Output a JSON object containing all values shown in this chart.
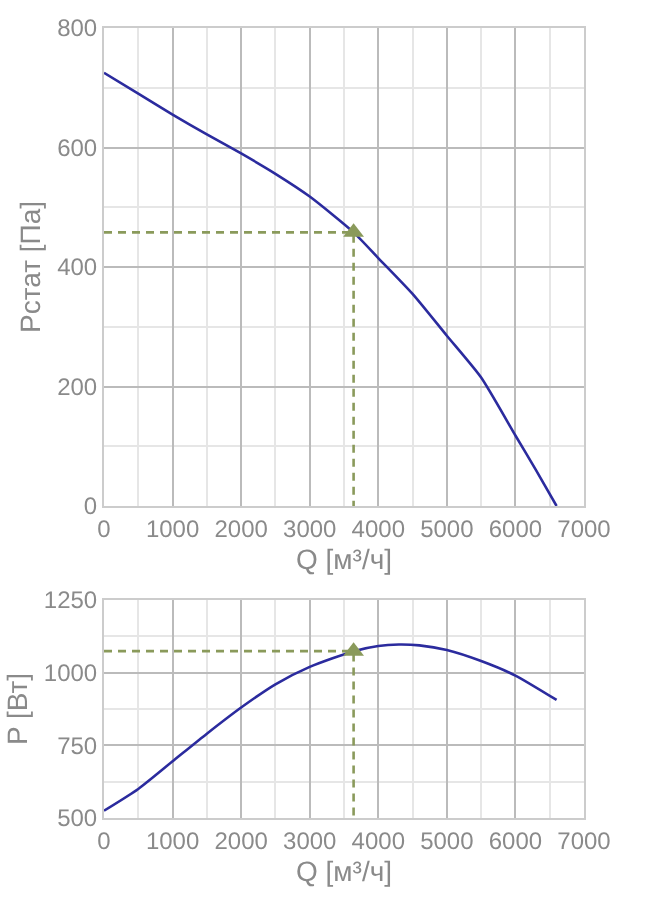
{
  "chart_data": [
    {
      "type": "line",
      "xlabel": "Q [м³/ч]",
      "ylabel": "Pстат [Па]",
      "xlim": [
        0,
        7000
      ],
      "xticks": [
        0,
        1000,
        2000,
        3000,
        4000,
        5000,
        6000,
        7000
      ],
      "ylim": [
        0,
        800
      ],
      "yticks": [
        0,
        200,
        400,
        600,
        800
      ],
      "grid": true,
      "series": [
        {
          "color": "#2b2b9e",
          "marker": "none",
          "line_style": "solid",
          "x": [
            0,
            500,
            1000,
            1500,
            2000,
            2500,
            3000,
            3640,
            4000,
            4500,
            5000,
            5500,
            6000,
            6300,
            6600
          ],
          "values": [
            725,
            690,
            655,
            622,
            590,
            556,
            518,
            458,
            415,
            355,
            285,
            215,
            118,
            60,
            0
          ]
        },
        {
          "color": "#8a9a5b",
          "marker": "none",
          "line_style": "dashed",
          "x": [
            0,
            3640,
            3640
          ],
          "values": [
            458,
            458,
            0
          ]
        },
        {
          "type": "scatter",
          "color": "#8a9a5b",
          "marker": "triangle",
          "x": [
            3640
          ],
          "values": [
            458
          ]
        }
      ]
    },
    {
      "type": "line",
      "xlabel": "Q [м³/ч]",
      "ylabel": "P [Вт]",
      "xlim": [
        0,
        7000
      ],
      "xticks": [
        0,
        1000,
        2000,
        3000,
        4000,
        5000,
        6000,
        7000
      ],
      "ylim": [
        500,
        1250
      ],
      "yticks": [
        500,
        750,
        1000,
        1250
      ],
      "grid": true,
      "series": [
        {
          "color": "#2b2b9e",
          "marker": "none",
          "line_style": "solid",
          "x": [
            0,
            500,
            1000,
            1500,
            2000,
            2500,
            3000,
            3640,
            4000,
            4300,
            4600,
            5000,
            5500,
            6000,
            6600
          ],
          "values": [
            525,
            600,
            695,
            790,
            880,
            960,
            1020,
            1074,
            1092,
            1097,
            1094,
            1078,
            1040,
            990,
            906
          ]
        },
        {
          "color": "#8a9a5b",
          "marker": "none",
          "line_style": "dashed",
          "x": [
            0,
            3640,
            3640
          ],
          "values": [
            1074,
            1074,
            500
          ]
        },
        {
          "type": "scatter",
          "color": "#8a9a5b",
          "marker": "triangle",
          "x": [
            3640
          ],
          "values": [
            1074
          ]
        }
      ]
    }
  ]
}
